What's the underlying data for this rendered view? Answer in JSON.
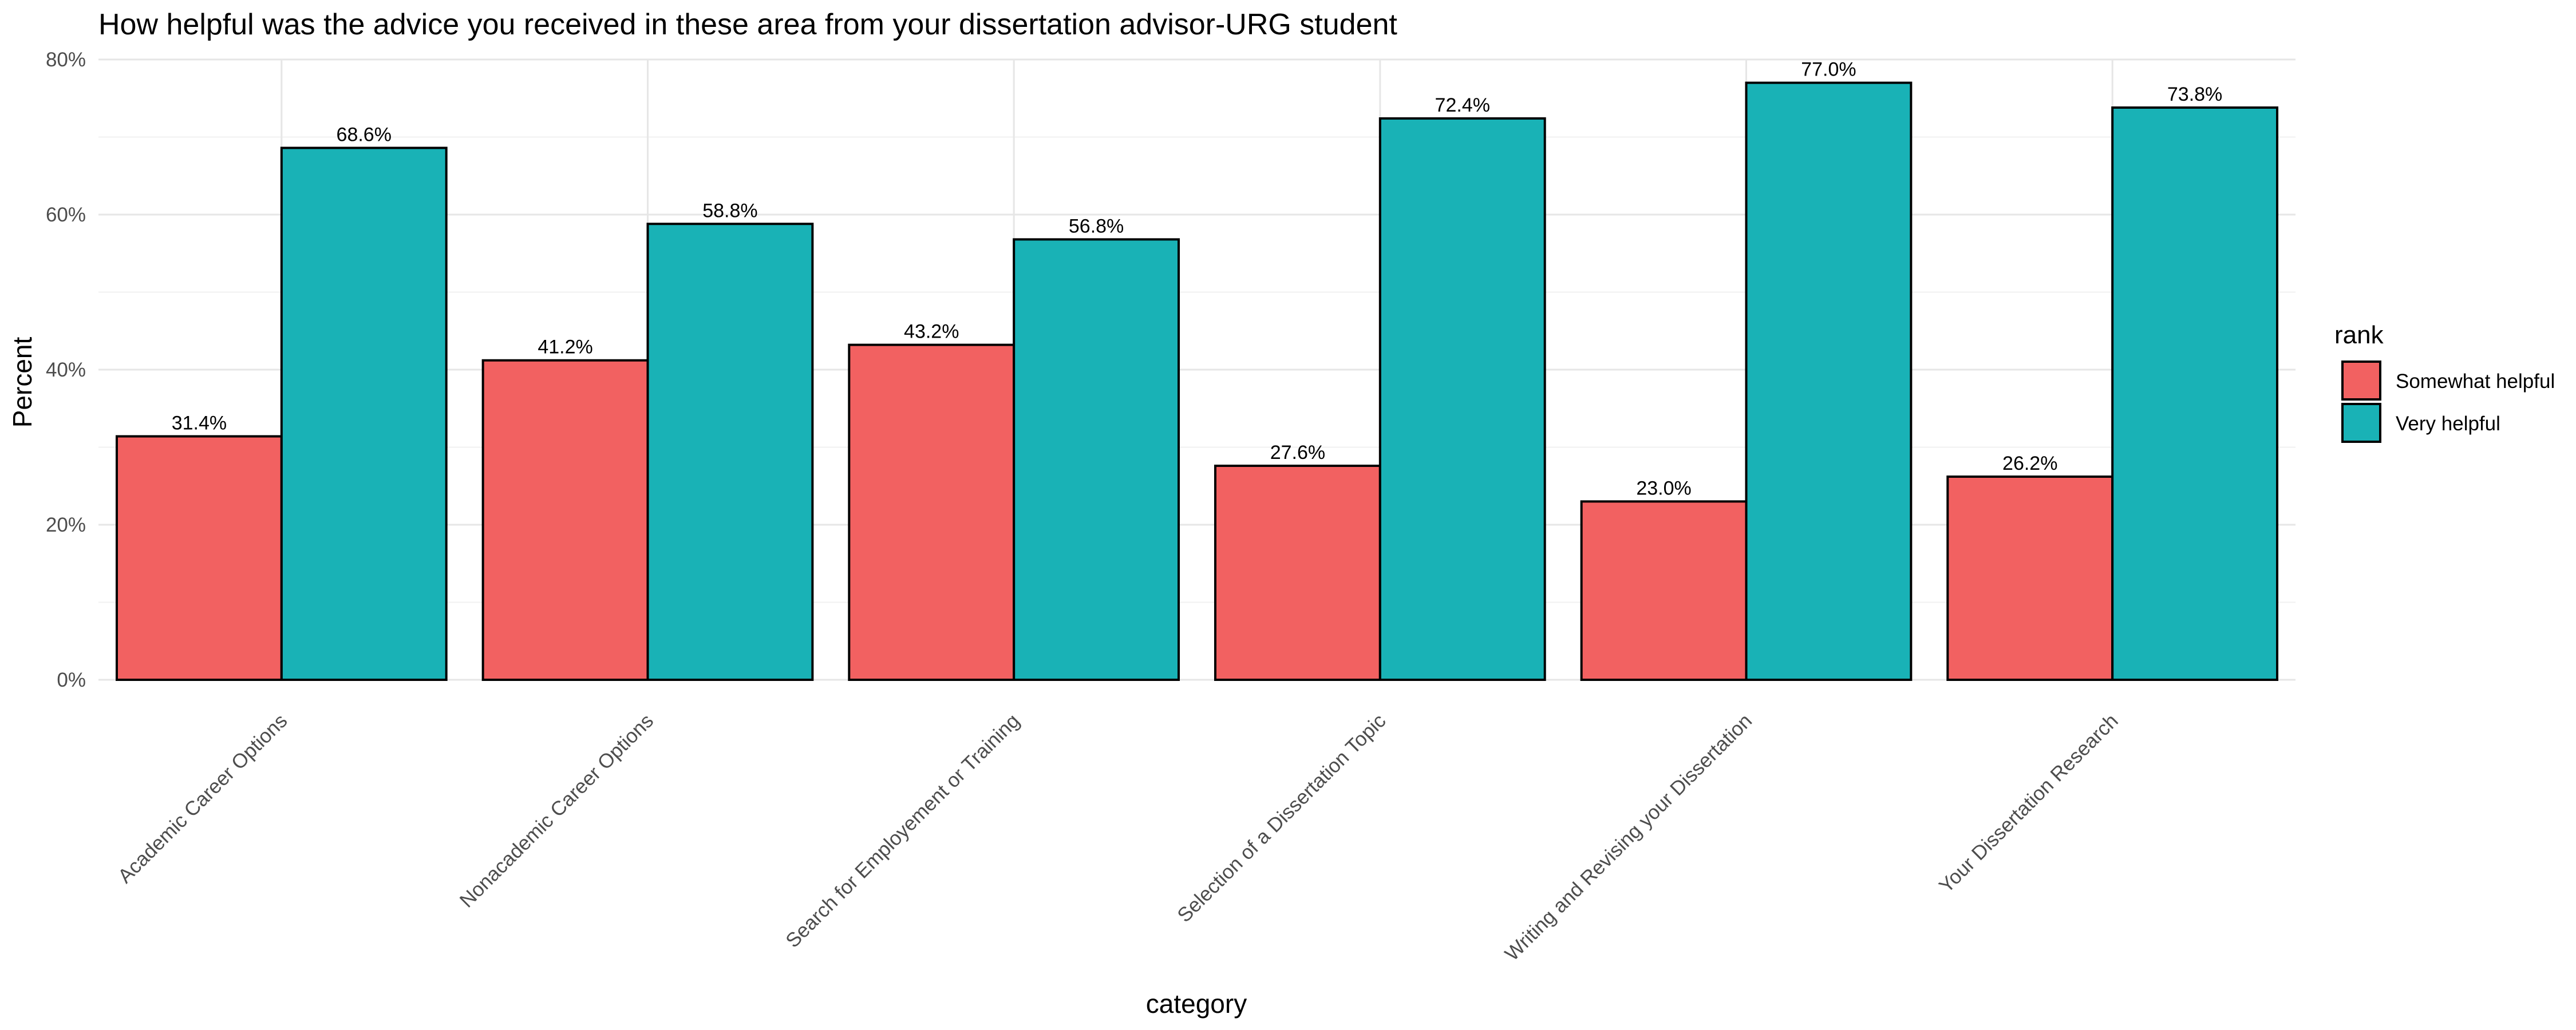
{
  "chart_data": {
    "type": "bar",
    "title": "How helpful was the advice you received in these area from your dissertation advisor-URG student",
    "xlabel": "category",
    "ylabel": "Percent",
    "ylim": [
      0,
      80
    ],
    "y_ticks": [
      "0%",
      "20%",
      "40%",
      "60%",
      "80%"
    ],
    "y_tick_values": [
      0,
      20,
      40,
      60,
      80
    ],
    "grid": true,
    "legend_title": "rank",
    "legend_position": "right",
    "categories": [
      "Academic Career Options",
      "Nonacademic Career Options",
      "Search for Employement or Training",
      "Selection of a Dissertation Topic",
      "Writing and Revising your Dissertation",
      "Your Dissertation Research"
    ],
    "series": [
      {
        "name": "Somewhat helpful",
        "color": "#F26161",
        "values": [
          31.4,
          41.2,
          43.2,
          27.6,
          23.0,
          26.2
        ],
        "labels": [
          "31.4%",
          "41.2%",
          "43.2%",
          "27.6%",
          "23.0%",
          "26.2%"
        ]
      },
      {
        "name": "Very helpful",
        "color": "#19B2B6",
        "values": [
          68.6,
          58.8,
          56.8,
          72.4,
          77.0,
          73.8
        ],
        "labels": [
          "68.6%",
          "58.8%",
          "56.8%",
          "72.4%",
          "77.0%",
          "73.8%"
        ]
      }
    ]
  }
}
